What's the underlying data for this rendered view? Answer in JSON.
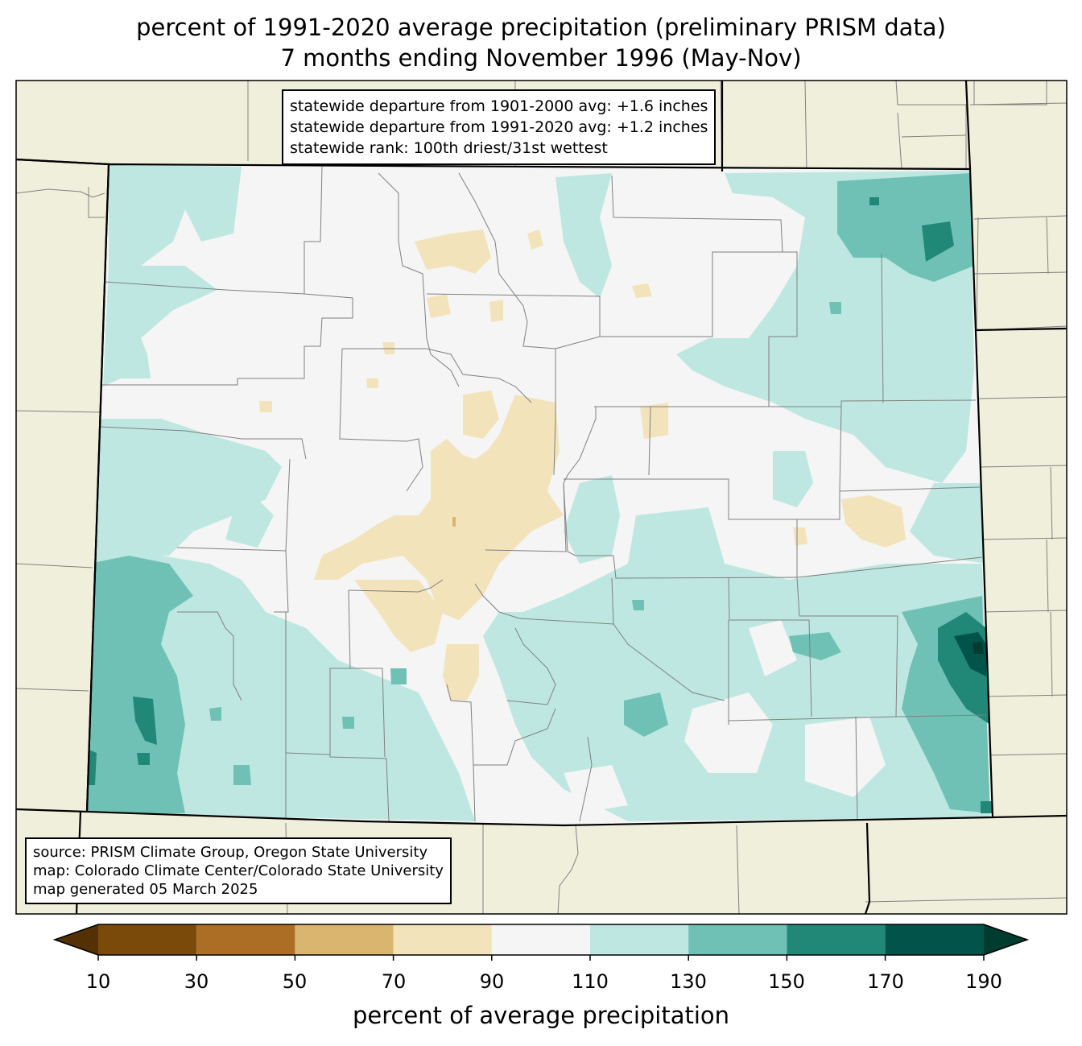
{
  "title": {
    "line1": "percent of 1991-2020 average precipitation (preliminary PRISM data)",
    "line2": "7 months ending November 1996 (May-Nov)"
  },
  "stats": {
    "line1": "statewide departure from 1901-2000 avg: +1.6 inches",
    "line2": "statewide departure from 1991-2020 avg: +1.2 inches",
    "line3": "statewide rank: 100th driest/31st wettest"
  },
  "source": {
    "line1": "source: PRISM Climate Group, Oregon State University",
    "line2": "map: Colorado Climate Center/Colorado State University",
    "line3": "map generated 05 March 2025"
  },
  "colorbar": {
    "title": "percent of average precipitation",
    "ticks": [
      "10",
      "30",
      "50",
      "70",
      "90",
      "110",
      "130",
      "150",
      "170",
      "190"
    ],
    "colors": {
      "under": "#543005",
      "b10_30": "#7a4a0a",
      "b30_50": "#ab6e24",
      "b50_70": "#dab56f",
      "b70_90": "#f3e3bb",
      "b90_110": "#f4f5f4",
      "b110_130": "#bee7e1",
      "b130_150": "#70c1b5",
      "b150_170": "#218878",
      "b170_190": "#02544a",
      "over": "#003c30"
    }
  },
  "map_colors": {
    "land": "#efefdc",
    "state_border": "#000000",
    "county_border": "#808080"
  }
}
